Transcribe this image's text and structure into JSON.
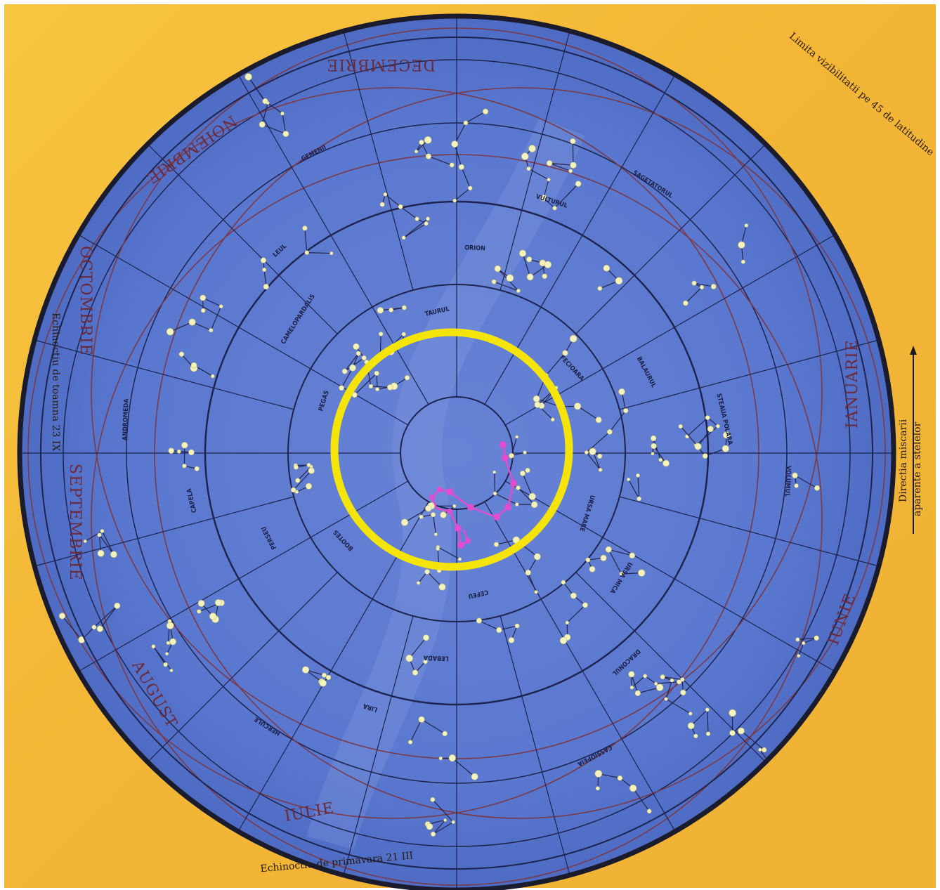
{
  "map": {
    "months": {
      "top": "DECEMBRIE",
      "top_left": "NOIEMBRIE",
      "left_upper": "OCTOMBRIE",
      "left_lower": "SEPTEMBRIE",
      "bottom_left": "AUGUST",
      "bottom": "IULIE",
      "right_lower": "IUNIE",
      "right": "IANUARIE"
    },
    "edge_texts": {
      "left": "Echinoctiu de toamna 23 IX",
      "bottom": "Echinoctiu de primavara 21 III",
      "right_top": "Limita vizibilitatii pe 45 de latitudine",
      "right_arrow": "Directia miscarii",
      "right_sub": "aparente a stelelor"
    },
    "constellations": [
      "URSA MARE",
      "URSA MICA",
      "DRACONUL",
      "CASSIOPEIA",
      "CEFEU",
      "LEBADA",
      "LIRA",
      "HERCULE",
      "BOOTES",
      "PERSEU",
      "CAPELA",
      "ANDROMEDA",
      "PEGAS",
      "CAMELOPARDALIS",
      "LEUL",
      "GEMENII",
      "TAURUL",
      "ORION",
      "VULTURUL",
      "SAGETATORUL",
      "FECIOARA",
      "BALAURUL",
      "STEAUA POLARA",
      "VOLUMUL"
    ],
    "colors": {
      "sky": "#5a78cf",
      "frame": "#f3b636",
      "highlight_circle": "#f5e40a",
      "highlight_stars": "#e24ccf",
      "star": "#f4f3c0"
    }
  }
}
